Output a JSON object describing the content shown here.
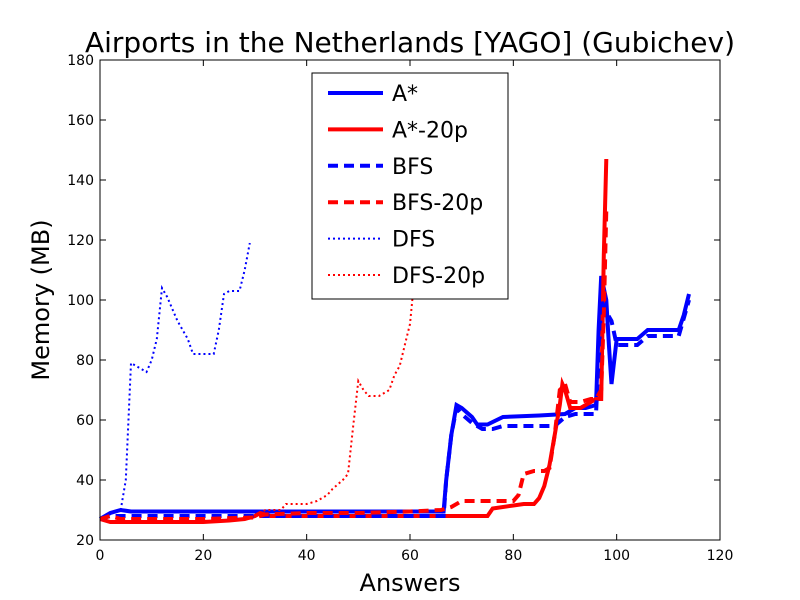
{
  "chart_data": {
    "type": "line",
    "title": "Airports in the Netherlands [YAGO] (Gubichev)",
    "xlabel": "Answers",
    "ylabel": "Memory (MB)",
    "xlim": [
      0,
      120
    ],
    "ylim": [
      20,
      180
    ],
    "xticks": [
      0,
      20,
      40,
      60,
      80,
      100,
      120
    ],
    "yticks": [
      20,
      40,
      60,
      80,
      100,
      120,
      140,
      160,
      180
    ],
    "grid": false,
    "legend_position": "top-center",
    "series": [
      {
        "name": "A*",
        "color": "#0000ff",
        "style": "solid",
        "x": [
          0,
          2,
          4,
          6,
          10,
          20,
          30,
          40,
          50,
          60,
          65,
          66.5,
          67,
          68,
          69,
          70,
          72,
          73,
          75,
          78,
          85,
          90,
          92,
          94,
          96,
          96.5,
          97,
          98,
          98.5,
          99,
          100,
          102,
          104,
          106,
          108,
          110,
          112,
          113,
          114
        ],
        "y": [
          27,
          29,
          30,
          29.5,
          29.5,
          29.5,
          29.5,
          29.5,
          29.5,
          29.5,
          29.5,
          29.5,
          40,
          55,
          65,
          64,
          61,
          58.5,
          58.5,
          61,
          61.5,
          62,
          64,
          64,
          65,
          90,
          108,
          100,
          85,
          72,
          87,
          87,
          87,
          90,
          90,
          90,
          90,
          95,
          102
        ]
      },
      {
        "name": "A*-20p",
        "color": "#ff0000",
        "style": "solid",
        "x": [
          0,
          2,
          4,
          10,
          20,
          25,
          28,
          30,
          31,
          33,
          40,
          50,
          60,
          66,
          70,
          75,
          76,
          80,
          82,
          84,
          85,
          86,
          87,
          88,
          89,
          89.5,
          90,
          91,
          93,
          95,
          96,
          97,
          97.5,
          98
        ],
        "y": [
          27,
          26,
          26,
          26,
          26,
          26.5,
          27,
          28,
          29,
          28,
          28,
          28,
          28,
          28,
          28,
          28,
          30.5,
          31.5,
          32,
          32,
          34,
          38,
          45,
          55,
          65,
          72,
          70,
          64,
          64,
          66,
          67,
          67,
          115,
          147
        ]
      },
      {
        "name": "BFS",
        "color": "#0000ff",
        "style": "dashed",
        "x": [
          0,
          2,
          4,
          10,
          20,
          30,
          40,
          50,
          60,
          66.5,
          67,
          68,
          69,
          70,
          72,
          74,
          76,
          78,
          80,
          88,
          90,
          92,
          95,
          96,
          96.5,
          97,
          98,
          99,
          100,
          102,
          104,
          106,
          108,
          110,
          112,
          114
        ],
        "y": [
          27,
          28,
          28,
          28,
          28,
          28,
          28,
          28,
          28,
          28,
          40,
          55,
          64,
          62,
          59,
          57,
          57,
          58,
          58,
          58,
          61,
          62,
          62,
          62,
          80,
          100,
          96,
          93,
          85,
          85,
          85,
          88,
          88,
          88,
          88,
          100
        ]
      },
      {
        "name": "BFS-20p",
        "color": "#ff0000",
        "style": "dashed",
        "x": [
          0,
          2,
          4,
          10,
          20,
          30,
          32,
          40,
          50,
          60,
          66,
          68,
          70,
          72,
          75,
          78,
          80,
          81,
          82,
          84,
          86,
          87,
          88,
          89,
          90,
          91,
          93,
          95,
          96,
          97,
          97.5,
          98
        ],
        "y": [
          27,
          28,
          27,
          27,
          27,
          27.5,
          28.5,
          29,
          29,
          29.5,
          30,
          31,
          33,
          33,
          33,
          33,
          33,
          35,
          42,
          43,
          43,
          44,
          55,
          70,
          72,
          66,
          66,
          67,
          67,
          70,
          95,
          130
        ]
      },
      {
        "name": "DFS",
        "color": "#0000ff",
        "style": "dotted",
        "x": [
          4,
          5,
          6,
          7,
          8,
          9,
          10,
          11,
          12,
          13,
          15,
          17,
          18,
          20,
          22,
          23,
          24,
          25,
          26,
          27,
          28,
          29
        ],
        "y": [
          30,
          40,
          79,
          78,
          77,
          76,
          80,
          87,
          104,
          101,
          93,
          87,
          82,
          82,
          82,
          90,
          102,
          103,
          103,
          103,
          110,
          119
        ]
      },
      {
        "name": "DFS-20p",
        "color": "#ff0000",
        "style": "dotted",
        "x": [
          30,
          32,
          35,
          36,
          38,
          40,
          42,
          44,
          45,
          47,
          48,
          49,
          50,
          51,
          52,
          54,
          56,
          57,
          58,
          59,
          60,
          61
        ],
        "y": [
          28,
          30,
          30,
          32,
          32,
          32,
          33,
          35,
          37,
          40,
          42,
          58,
          73,
          70,
          68,
          68,
          70,
          75,
          78,
          85,
          92,
          110
        ]
      }
    ]
  }
}
